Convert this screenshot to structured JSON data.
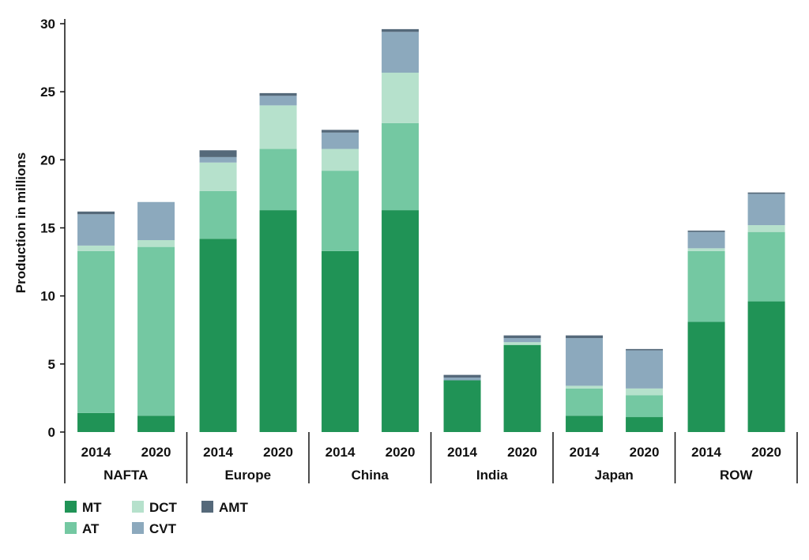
{
  "chart_data": {
    "type": "bar",
    "stacked": true,
    "ylabel": "Production in millions",
    "ylim": [
      0,
      30
    ],
    "yticks": [
      0,
      5,
      10,
      15,
      20,
      25,
      30
    ],
    "groups": [
      {
        "label": "NAFTA",
        "years": [
          "2014",
          "2020"
        ]
      },
      {
        "label": "Europe",
        "years": [
          "2014",
          "2020"
        ]
      },
      {
        "label": "China",
        "years": [
          "2014",
          "2020"
        ]
      },
      {
        "label": "India",
        "years": [
          "2014",
          "2020"
        ]
      },
      {
        "label": "Japan",
        "years": [
          "2014",
          "2020"
        ]
      },
      {
        "label": "ROW",
        "years": [
          "2014",
          "2020"
        ]
      }
    ],
    "series": [
      {
        "name": "MT",
        "color": "#209356",
        "values": [
          1.4,
          1.2,
          14.2,
          16.3,
          13.3,
          16.3,
          3.8,
          6.4,
          1.2,
          1.1,
          8.1,
          9.6
        ]
      },
      {
        "name": "AT",
        "color": "#74c8a2",
        "values": [
          11.9,
          12.4,
          3.5,
          4.5,
          5.9,
          6.4,
          0.0,
          0.0,
          2.0,
          1.6,
          5.2,
          5.1
        ]
      },
      {
        "name": "DCT",
        "color": "#b6e1cc",
        "values": [
          0.4,
          0.5,
          2.1,
          3.2,
          1.6,
          3.7,
          0.0,
          0.2,
          0.2,
          0.5,
          0.2,
          0.5
        ]
      },
      {
        "name": "CVT",
        "color": "#8ca9bd",
        "values": [
          2.3,
          2.8,
          0.4,
          0.7,
          1.2,
          3.0,
          0.2,
          0.3,
          3.5,
          2.8,
          1.2,
          2.3
        ]
      },
      {
        "name": "AMT",
        "color": "#55697a",
        "values": [
          0.2,
          0.0,
          0.5,
          0.2,
          0.2,
          0.2,
          0.2,
          0.2,
          0.2,
          0.1,
          0.1,
          0.1
        ]
      }
    ],
    "legend": {
      "placement": "bottom-left",
      "items": [
        "MT",
        "DCT",
        "AMT",
        "AT",
        "CVT"
      ]
    },
    "grid": false
  }
}
